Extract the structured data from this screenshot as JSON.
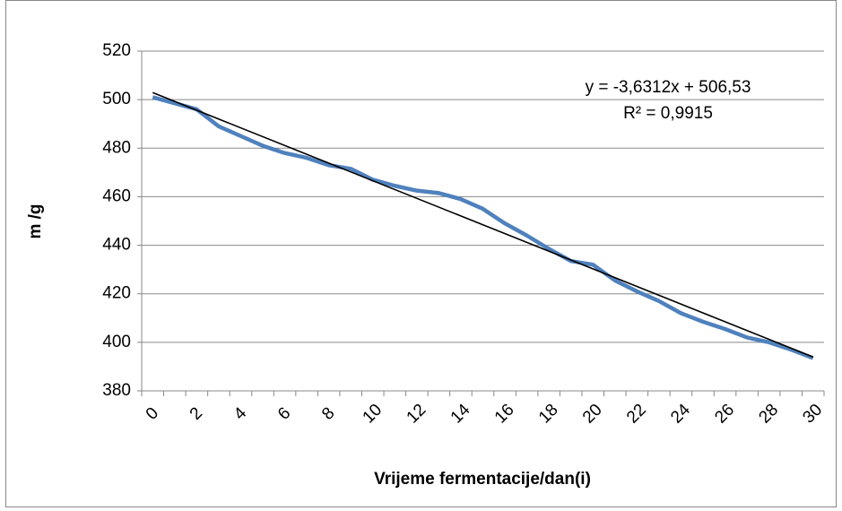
{
  "chart_data": {
    "type": "line",
    "x_label": "Vrijeme fermentacije/dan(i)",
    "y_label": "m /g",
    "categories": [
      0,
      null,
      2,
      null,
      4,
      null,
      6,
      null,
      8,
      null,
      10,
      null,
      12,
      null,
      14,
      null,
      16,
      null,
      18,
      null,
      20,
      null,
      22,
      null,
      24,
      null,
      26,
      null,
      28,
      null,
      30
    ],
    "values": [
      501,
      498.5,
      496,
      489,
      485,
      481,
      478,
      476,
      473,
      471.5,
      467,
      464.5,
      462.5,
      461.5,
      459,
      455,
      449,
      444,
      438.5,
      433.5,
      432,
      425.5,
      421,
      417,
      412,
      408.5,
      405.5,
      402,
      400,
      397,
      393.5
    ],
    "color": "#4f81bd",
    "ylim": [
      380,
      520
    ],
    "yticks": [
      380,
      400,
      420,
      440,
      460,
      480,
      500,
      520
    ],
    "grid": true,
    "trendline": {
      "label": "y = -3,6312x + 506,53",
      "r2_label": "R² = 0,9915",
      "slope": -3.6312,
      "intercept": 506.53,
      "color": "#000000"
    }
  }
}
